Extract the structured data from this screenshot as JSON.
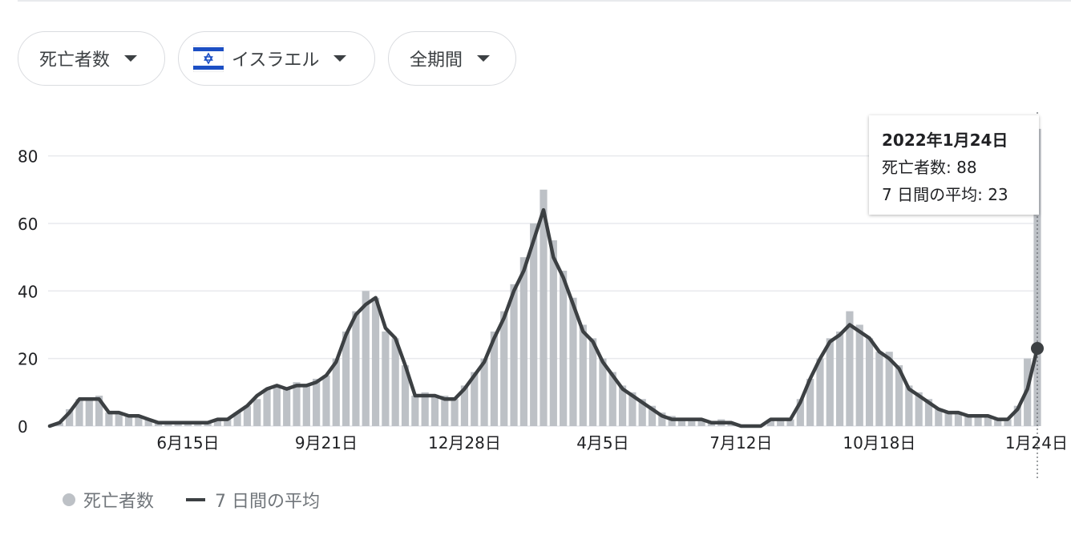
{
  "filters": {
    "metric": "死亡者数",
    "country": "イスラエル",
    "period": "全期間"
  },
  "tooltip": {
    "date": "2022年1月24日",
    "deaths_label": "死亡者数",
    "deaths_value": "88",
    "avg_label": "7 日間の平均",
    "avg_value": "23"
  },
  "legend": {
    "bars": "死亡者数",
    "line": "7 日間の平均"
  },
  "colors": {
    "bars": "#bdc1c6",
    "line": "#3c4043",
    "grid": "#e8eaed",
    "flag_blue": "#1c4fc4"
  },
  "chart_data": {
    "type": "bar",
    "title": "",
    "xlabel": "",
    "ylabel": "",
    "ylim": [
      0,
      92
    ],
    "y_ticks": [
      0,
      20,
      40,
      60,
      80
    ],
    "x_tick_labels": [
      "6月15日",
      "9月21日",
      "12月28日",
      "4月5日",
      "7月12日",
      "10月18日",
      "1月24日"
    ],
    "x_tick_weeks": [
      14,
      28,
      42,
      56,
      70,
      84,
      98
    ],
    "series": [
      {
        "name": "死亡者数",
        "kind": "bars",
        "description": "weekly-sampled daily deaths, first week ~2020-03-16",
        "values": [
          0,
          1,
          5,
          8,
          8,
          9,
          4,
          4,
          3,
          3,
          2,
          1,
          1,
          1,
          1,
          1,
          1,
          2,
          2,
          4,
          6,
          8,
          11,
          12,
          11,
          13,
          12,
          14,
          15,
          20,
          28,
          34,
          40,
          38,
          28,
          26,
          18,
          9,
          10,
          9,
          9,
          8,
          12,
          16,
          20,
          28,
          34,
          42,
          50,
          60,
          70,
          55,
          46,
          38,
          30,
          26,
          20,
          16,
          12,
          10,
          8,
          6,
          4,
          3,
          2,
          2,
          2,
          1,
          2,
          1,
          0,
          0,
          0,
          2,
          2,
          2,
          8,
          14,
          20,
          26,
          28,
          34,
          30,
          26,
          22,
          22,
          18,
          12,
          10,
          8,
          5,
          4,
          4,
          3,
          3,
          3,
          2,
          2,
          6,
          20,
          88
        ]
      },
      {
        "name": "7 日間の平均",
        "kind": "line",
        "values": [
          0,
          1,
          4,
          8,
          8,
          8,
          4,
          4,
          3,
          3,
          2,
          1,
          1,
          1,
          1,
          1,
          1,
          2,
          2,
          4,
          6,
          9,
          11,
          12,
          11,
          12,
          12,
          13,
          15,
          19,
          27,
          33,
          36,
          38,
          29,
          26,
          18,
          9,
          9,
          9,
          8,
          8,
          11,
          15,
          19,
          26,
          32,
          40,
          46,
          55,
          64,
          50,
          44,
          36,
          28,
          25,
          19,
          15,
          11,
          9,
          7,
          5,
          3,
          2,
          2,
          2,
          2,
          1,
          1,
          1,
          0,
          0,
          0,
          2,
          2,
          2,
          7,
          14,
          20,
          25,
          27,
          30,
          28,
          26,
          22,
          20,
          17,
          11,
          9,
          7,
          5,
          4,
          4,
          3,
          3,
          3,
          2,
          2,
          5,
          11,
          23
        ]
      }
    ],
    "highlight": {
      "date": "2022年1月24日",
      "deaths": 88,
      "avg": 23
    }
  }
}
